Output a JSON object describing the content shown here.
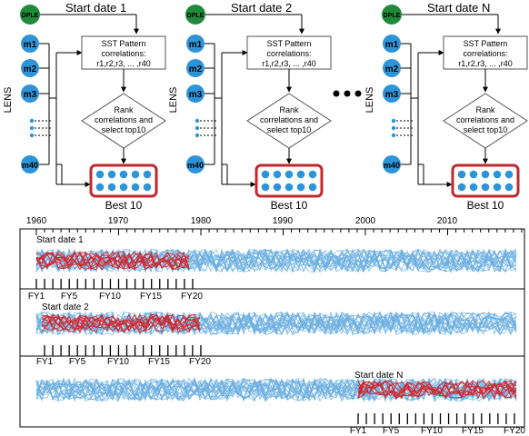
{
  "blocks": [
    {
      "start_label": "Start date 1",
      "dple": "DPLE",
      "lens": "LENS",
      "members": [
        "m1",
        "m2",
        "m3",
        "m40"
      ],
      "sst": [
        "SST Pattern",
        "correlations:",
        "r1,r2,r3, ... ,r40"
      ],
      "rank": [
        "Rank",
        "correlations and",
        "select top10"
      ],
      "best": "Best 10"
    },
    {
      "start_label": "Start date 2",
      "dple": "DPLE",
      "lens": "LENS",
      "members": [
        "m1",
        "m2",
        "m3",
        "m40"
      ],
      "sst": [
        "SST Pattern",
        "correlations:",
        "r1,r2,r3, ... ,r40"
      ],
      "rank": [
        "Rank",
        "correlations and",
        "select top10"
      ],
      "best": "Best 10"
    },
    {
      "start_label": "Start date N",
      "dple": "DPLE",
      "lens": "LENS",
      "members": [
        "m1",
        "m2",
        "m3",
        "m40"
      ],
      "sst": [
        "SST Pattern",
        "correlations:",
        "r1,r2,r3, ... ,r40"
      ],
      "rank": [
        "Rank",
        "correlations and",
        "select top10"
      ],
      "best": "Best 10"
    }
  ],
  "timeline": {
    "years": [
      "1960",
      "1970",
      "1980",
      "1990",
      "2000",
      "2010"
    ],
    "panels": [
      {
        "label": "Start date 1",
        "fy": [
          "FY1",
          "FY5",
          "FY10",
          "FY15",
          "FY20"
        ]
      },
      {
        "label": "Start date 2",
        "fy": [
          "FY1",
          "FY5",
          "FY10",
          "FY15",
          "FY20"
        ]
      },
      {
        "label": "Start date N",
        "fy": [
          "FY1",
          "FY5",
          "FY10",
          "FY15",
          "FY20"
        ]
      }
    ]
  },
  "colors": {
    "dple": "#1f8a3a",
    "member": "#2e94d8",
    "best_border": "#c0282d",
    "ensemble_line": "#6aaee0",
    "selected_line": "#d0262c"
  }
}
